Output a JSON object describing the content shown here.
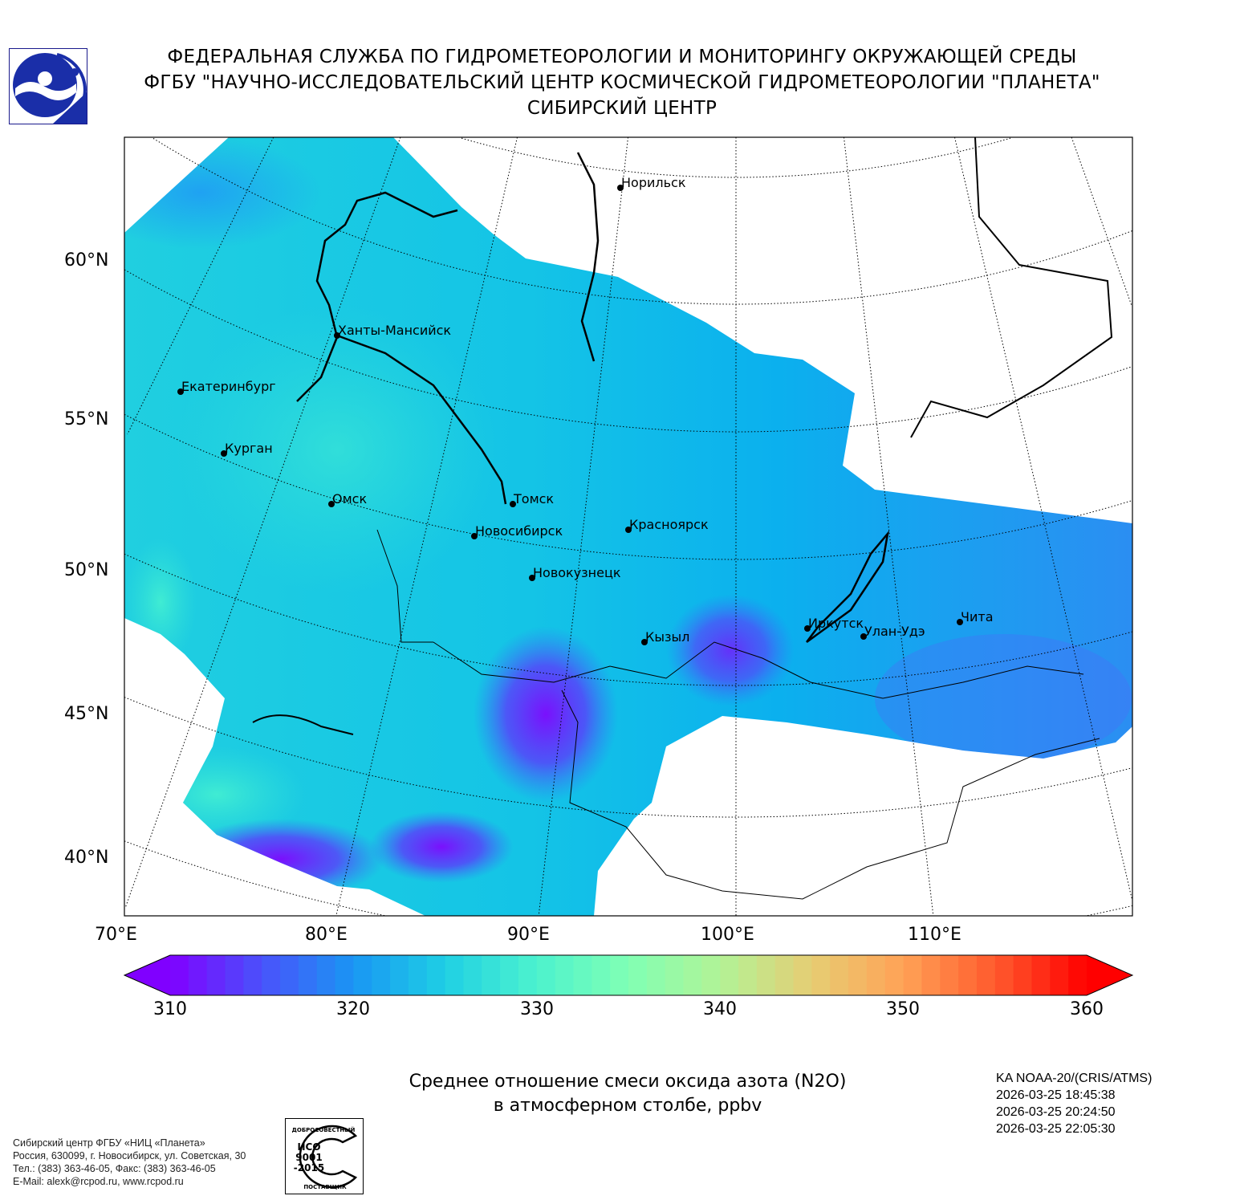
{
  "header": {
    "line1": "ФЕДЕРАЛЬНАЯ СЛУЖБА ПО ГИДРОМЕТЕОРОЛОГИИ И МОНИТОРИНГУ ОКРУЖАЮЩЕЙ СРЕДЫ",
    "line2": "ФГБУ \"НАУЧНО-ИССЛЕДОВАТЕЛЬСКИЙ ЦЕНТР КОСМИЧЕСКОЙ ГИДРОМЕТЕОРОЛОГИИ \"ПЛАНЕТА\"",
    "line3": "СИБИРСКИЙ ЦЕНТР"
  },
  "map": {
    "lat_labels": [
      "60°N",
      "55°N",
      "50°N",
      "45°N",
      "40°N"
    ],
    "lon_labels": [
      "70°E",
      "80°E",
      "90°E",
      "100°E",
      "110°E"
    ],
    "cities": [
      "Норильск",
      "Ханты-Мансийск",
      "Екатеринбург",
      "Курган",
      "Омск",
      "Томск",
      "Новосибирск",
      "Красноярск",
      "Новокузнецк",
      "Кызыл",
      "Иркутск",
      "Улан-Удэ",
      "Чита"
    ]
  },
  "colorbar": {
    "min": 310,
    "max": 360,
    "ticks": [
      "310",
      "320",
      "330",
      "340",
      "350",
      "360"
    ],
    "colors": [
      "#8000ff",
      "#4a52fb",
      "#1996f3",
      "#1fcfe4",
      "#4cf2ce",
      "#80ffb4",
      "#b2f396",
      "#e6cd73",
      "#ffa256",
      "#ff5a2d",
      "#ff0000"
    ]
  },
  "caption": {
    "line1": "Среднее отношение смеси оксида азота (N2O)",
    "line2": "в атмосферном столбе, ppbv"
  },
  "info": {
    "satellite": "KA NOAA-20/(CRIS/ATMS)",
    "times": [
      "2026-03-25 18:45:38",
      "2026-03-25 20:24:50",
      "2026-03-25 22:05:30"
    ]
  },
  "footer": {
    "lines": [
      "Сибирский центр ФГБУ «НИЦ «Планета»",
      "Россия, 630099, г. Новосибирск, ул. Советская, 30",
      "Тел.: (383) 363-46-05, Факс: (383) 363-46-05",
      "E-Mail: alexk@rcpod.ru, www.rcpod.ru"
    ],
    "iso_badge": {
      "top": "ДОБРОСОВЕСТНЫЙ",
      "mid1": "ИСО",
      "mid2": "9001",
      "mid3": "-2015",
      "bottom": "ПОСТАВЩИК"
    }
  }
}
